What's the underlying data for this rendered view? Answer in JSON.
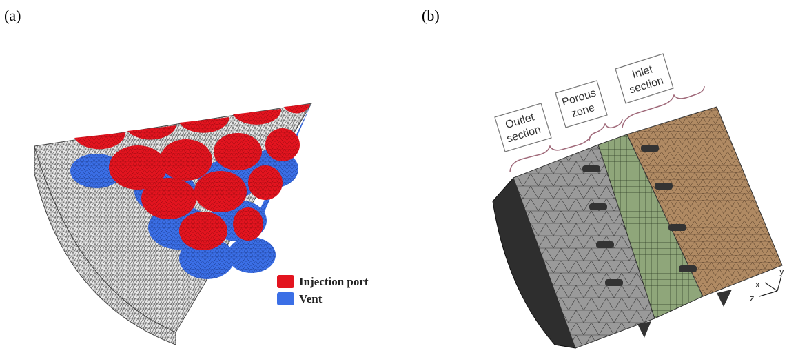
{
  "panels": [
    {
      "label": "(a)",
      "legend": [
        {
          "label": "Injection port",
          "color": "#e3141f"
        },
        {
          "label": "Vent",
          "color": "#3b6fe6"
        }
      ]
    },
    {
      "label": "(b)",
      "regions": [
        {
          "lines": [
            "Outlet",
            "section"
          ]
        },
        {
          "lines": [
            "Porous",
            "zone"
          ]
        },
        {
          "lines": [
            "Inlet",
            "section"
          ]
        }
      ],
      "axes": [
        "x",
        "y",
        "z"
      ]
    }
  ]
}
